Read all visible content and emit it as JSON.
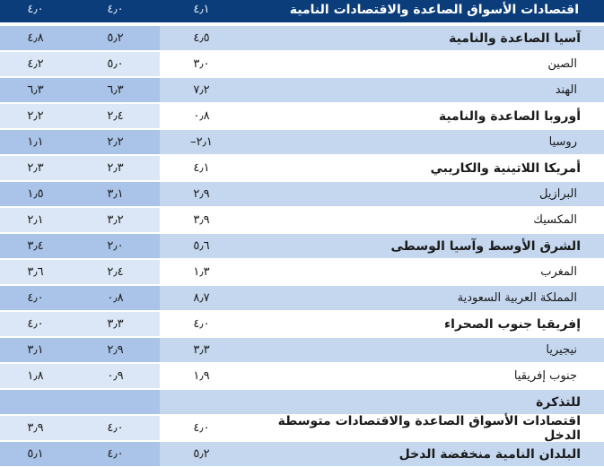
{
  "rows": [
    {
      "name": "اقتصادات الأسواق الصاعدة والاقتصادات النامية",
      "v1": "٤٫١",
      "v2": "٤٫٠",
      "v3": "٤٫٠",
      "style": "header"
    },
    {
      "name": "آسيا الصاعدة والنامية",
      "v1": "٤٫٥",
      "v2": "٥٫٢",
      "v3": "٤٫٨",
      "style": "group"
    },
    {
      "name": "الصين",
      "v1": "٣٫٠",
      "v2": "٥٫٠",
      "v3": "٤٫٢",
      "style": "item"
    },
    {
      "name": "الهند",
      "v1": "٧٫٢",
      "v2": "٦٫٣",
      "v3": "٦٫٣",
      "style": "item"
    },
    {
      "name": "أوروبا الصاعدة والنامية",
      "v1": "٠٫٨",
      "v2": "٢٫٤",
      "v3": "٢٫٢",
      "style": "group"
    },
    {
      "name": "روسيا",
      "v1": "–٢٫١",
      "v2": "٢٫٢",
      "v3": "١٫١",
      "style": "item"
    },
    {
      "name": "أمريكا اللاتينية والكاريبي",
      "v1": "٤٫١",
      "v2": "٢٫٣",
      "v3": "٢٫٣",
      "style": "group"
    },
    {
      "name": "البرازيل",
      "v1": "٢٫٩",
      "v2": "٣٫١",
      "v3": "١٫٥",
      "style": "item"
    },
    {
      "name": "المكسيك",
      "v1": "٣٫٩",
      "v2": "٣٫٢",
      "v3": "٢٫١",
      "style": "item"
    },
    {
      "name": "الشرق الأوسط وآسيا الوسطى",
      "v1": "٥٫٦",
      "v2": "٢٫٠",
      "v3": "٣٫٤",
      "style": "group"
    },
    {
      "name": "المغرب",
      "v1": "١٫٣",
      "v2": "٢٫٤",
      "v3": "٣٫٦",
      "style": "item"
    },
    {
      "name": "المملكة العربية السعودية",
      "v1": "٨٫٧",
      "v2": "٠٫٨",
      "v3": "٤٫٠",
      "style": "item"
    },
    {
      "name": "إفريقيا جنوب الصحراء",
      "v1": "٤٫٠",
      "v2": "٣٫٣",
      "v3": "٤٫٠",
      "style": "group"
    },
    {
      "name": "نيجيريا",
      "v1": "٣٫٣",
      "v2": "٢٫٩",
      "v3": "٣٫١",
      "style": "item"
    },
    {
      "name": "جنوب إفريقيا",
      "v1": "١٫٩",
      "v2": "٠٫٩",
      "v3": "١٫٨",
      "style": "item"
    },
    {
      "name": "للتذكرة",
      "v1": "",
      "v2": "",
      "v3": "",
      "style": "group"
    },
    {
      "name": "اقتصادات الأسواق الصاعدة والاقتصادات متوسطة الدخل",
      "v1": "٤٫٠",
      "v2": "٤٫٠",
      "v3": "٣٫٩",
      "style": "group"
    },
    {
      "name": "البلدان النامية منخفضة الدخل",
      "v1": "٥٫٢",
      "v2": "٤٫٠",
      "v3": "٥٫١",
      "style": "group"
    }
  ],
  "colors": {
    "header": "#0b3d7a",
    "row_blue": "#c4d7ef",
    "row_blue_dark": "#a9c4e8",
    "row_white": "#ffffff",
    "row_white_tint": "#dbe7f6"
  }
}
